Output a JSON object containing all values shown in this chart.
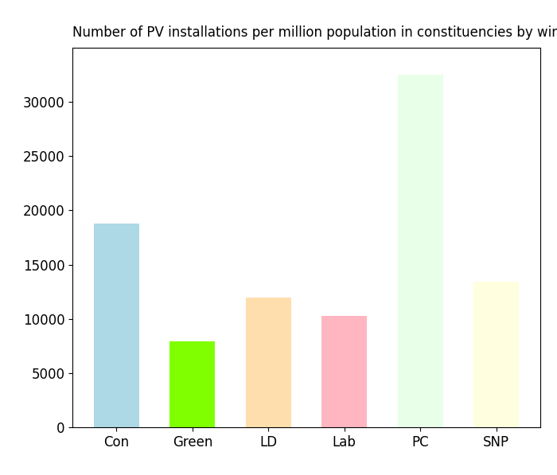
{
  "categories": [
    "Con",
    "Green",
    "LD",
    "Lab",
    "PC",
    "SNP"
  ],
  "values": [
    18800,
    7900,
    12000,
    10300,
    32500,
    13400
  ],
  "bar_colors": [
    "#add8e6",
    "#7fff00",
    "#ffdead",
    "#ffb6c1",
    "#e8ffe8",
    "#ffffe0"
  ],
  "title": "Number of PV installations per million population in constituencies by winning party",
  "title_fontsize": 12,
  "ylim": [
    0,
    35000
  ],
  "yticks": [
    0,
    5000,
    10000,
    15000,
    20000,
    25000,
    30000
  ],
  "background_color": "#ffffff",
  "tick_fontsize": 12,
  "bar_width": 0.6
}
